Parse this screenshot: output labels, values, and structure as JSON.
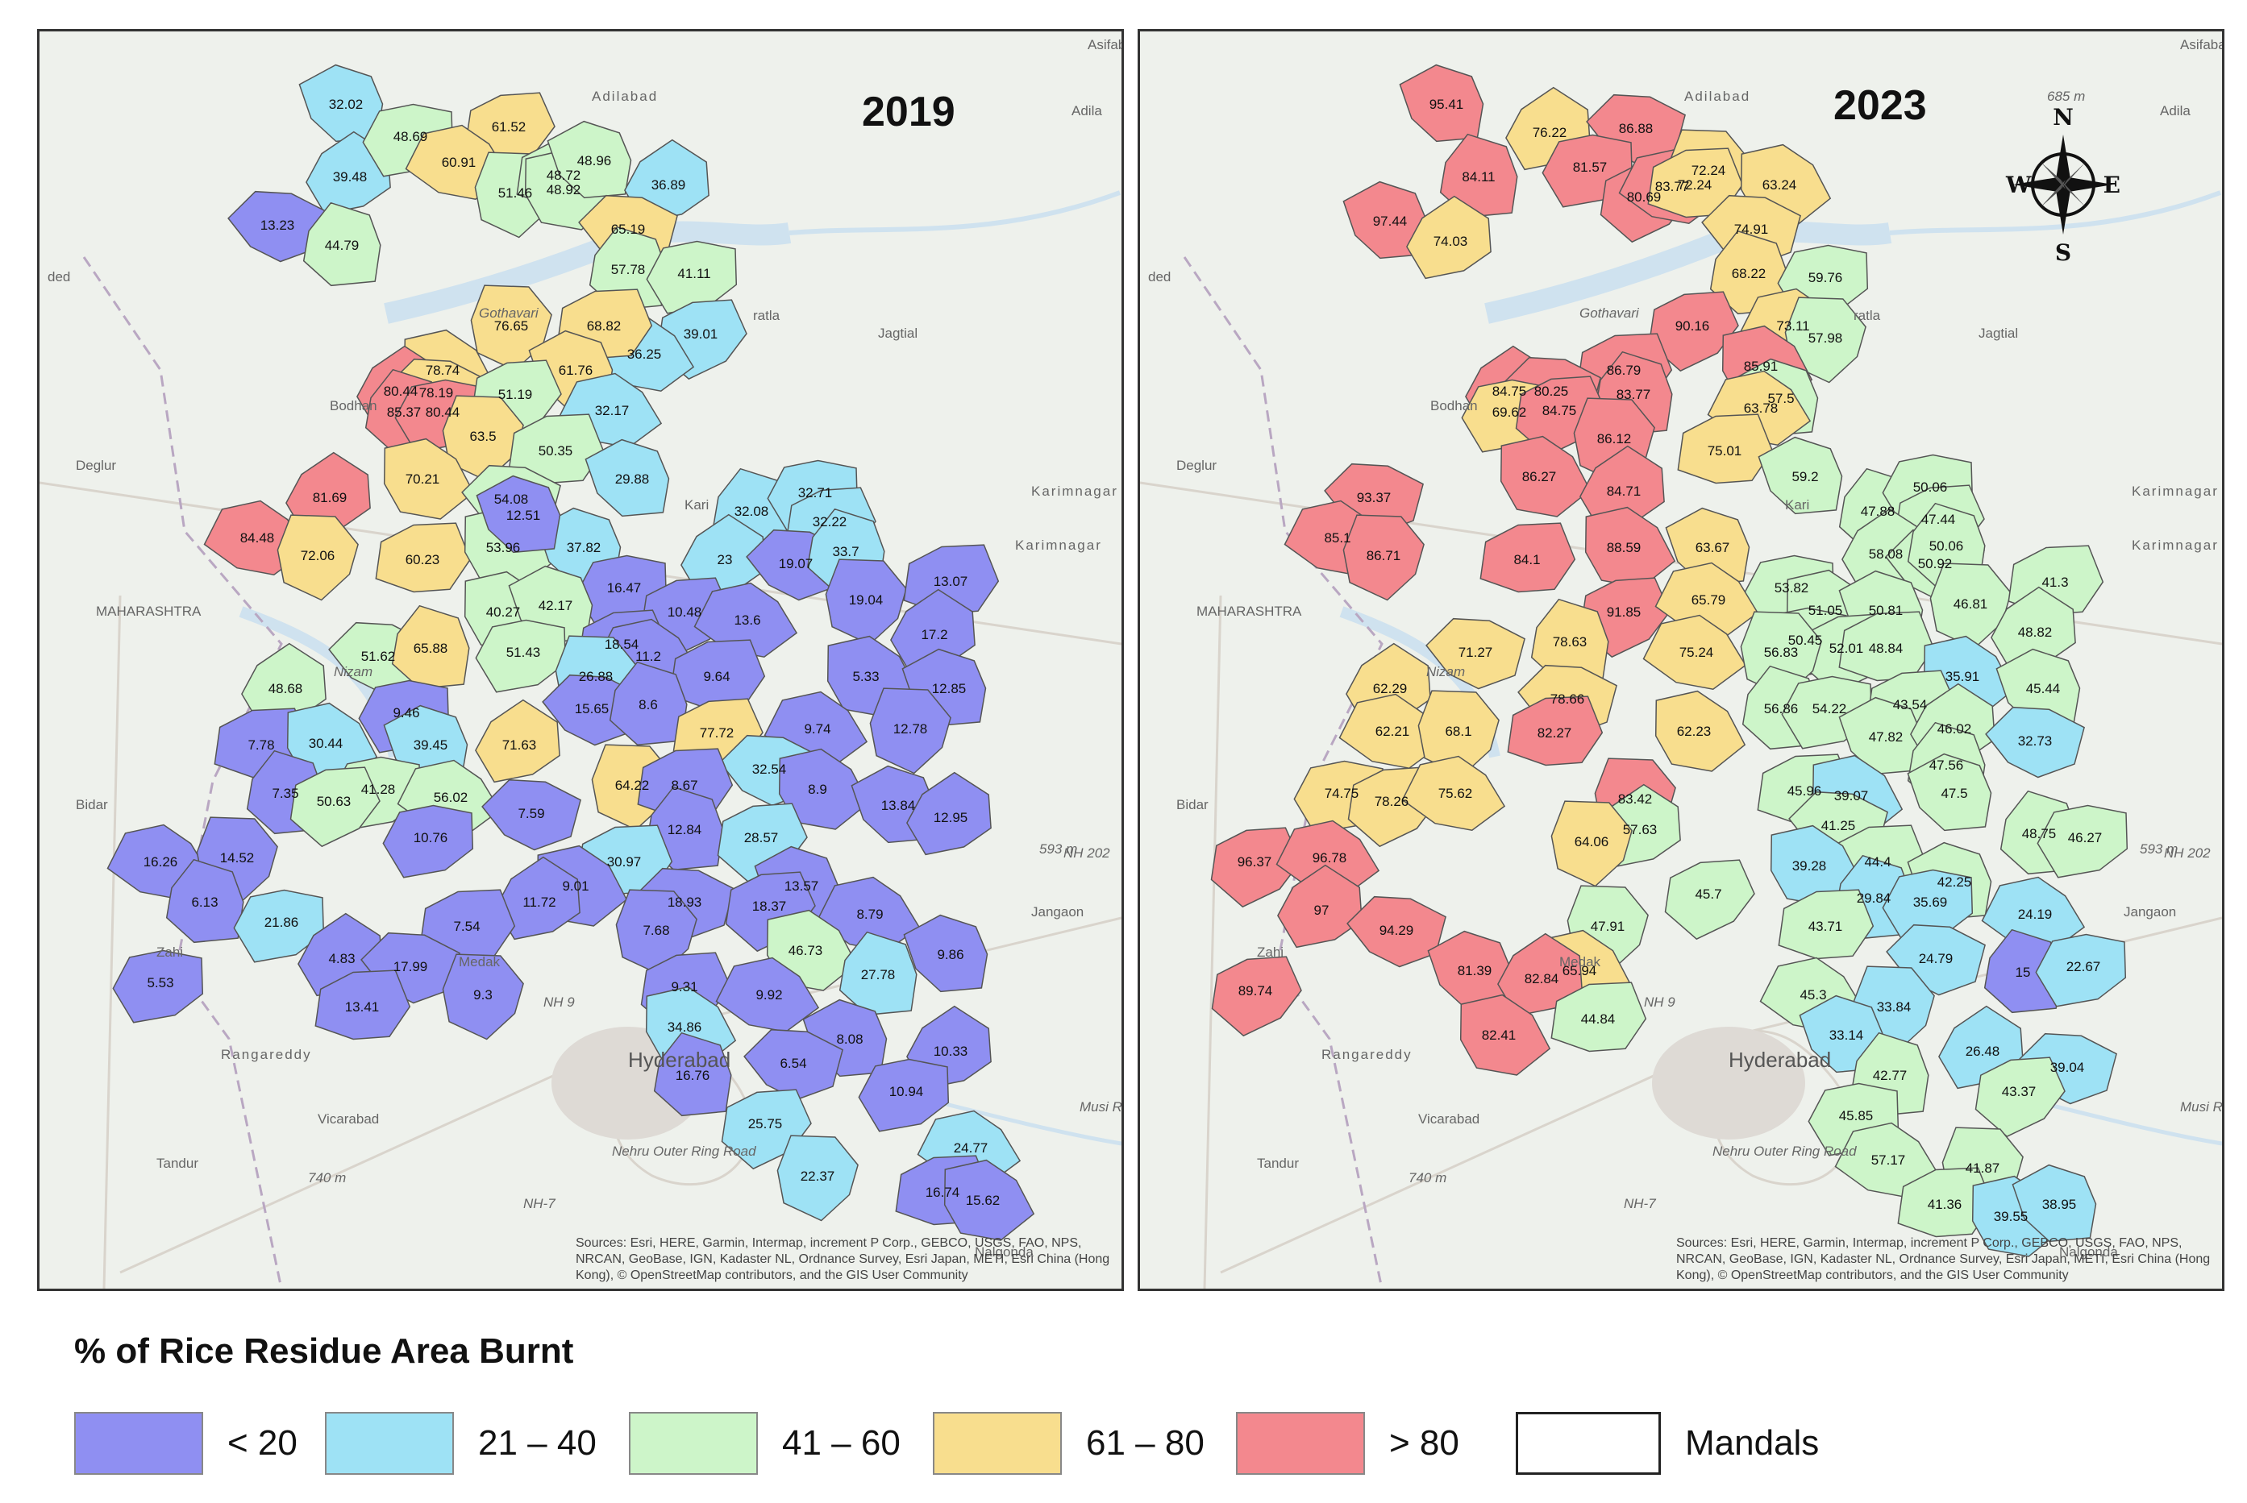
{
  "maps": [
    {
      "year": "2019",
      "places": [
        "Asifaba",
        "Adilabad",
        "Adila",
        "ded",
        "Gothavari",
        "Jagtial",
        "ratla",
        "Bodhan",
        "Deglur",
        "MAHARASHTRA",
        "Karimnagar",
        "Karimnagar",
        "Kari",
        "Nizam",
        "Bidar",
        "Zahi",
        "Jangaon",
        "593 m",
        "NH 202",
        "Rangareddy",
        "NH 9",
        "Hyderabad",
        "Vicarabad",
        "Tandur",
        "740 m",
        "NH-7",
        "Nehru Outer Ring Road",
        "Medak",
        "Nalgonda",
        "Musi R"
      ],
      "attribution": "Sources: Esri, HERE, Garmin, Intermap, increment P Corp., GEBCO, USGS, FAO, NPS, NRCAN, GeoBase, IGN, Kadaster NL, Ordnance Survey, Esri Japan, METI, Esri China (Hong Kong), © OpenStreetMap contributors, and the GIS User Community",
      "mandals": [
        {
          "v": "32.02",
          "c": "21-40"
        },
        {
          "v": "39.48",
          "c": "21-40"
        },
        {
          "v": "13.23",
          "c": "<20"
        },
        {
          "v": "44.79",
          "c": "41-60"
        },
        {
          "v": "48.69",
          "c": "41-60"
        },
        {
          "v": "61.52",
          "c": "61-80"
        },
        {
          "v": "60.91",
          "c": "61-80"
        },
        {
          "v": "51.46",
          "c": "41-60"
        },
        {
          "v": "48.72",
          "c": "41-60"
        },
        {
          "v": "48.92",
          "c": "41-60"
        },
        {
          "v": "48.96",
          "c": "41-60"
        },
        {
          "v": "36.89",
          "c": "21-40"
        },
        {
          "v": "65.19",
          "c": "61-80"
        },
        {
          "v": "57.78",
          "c": "41-60"
        },
        {
          "v": "41.11",
          "c": "41-60"
        },
        {
          "v": "39.01",
          "c": "21-40"
        },
        {
          "v": "36.25",
          "c": "21-40"
        },
        {
          "v": "76.65",
          "c": "61-80"
        },
        {
          "v": "68.82",
          "c": "61-80"
        },
        {
          "v": "78.74",
          "c": "61-80"
        },
        {
          "v": "61.76",
          "c": "61-80"
        },
        {
          "v": "80.44",
          "c": ">80"
        },
        {
          "v": "78.19",
          "c": "61-80"
        },
        {
          "v": "85.37",
          "c": ">80"
        },
        {
          "v": "80.44",
          "c": ">80"
        },
        {
          "v": "51.19",
          "c": "41-60"
        },
        {
          "v": "32.17",
          "c": "21-40"
        },
        {
          "v": "63.5",
          "c": "61-80"
        },
        {
          "v": "50.35",
          "c": "41-60"
        },
        {
          "v": "70.21",
          "c": "61-80"
        },
        {
          "v": "29.88",
          "c": "21-40"
        },
        {
          "v": "81.69",
          "c": ">80"
        },
        {
          "v": "54.08",
          "c": "41-60"
        },
        {
          "v": "32.08",
          "c": "21-40"
        },
        {
          "v": "32.71",
          "c": "21-40"
        },
        {
          "v": "32.22",
          "c": "21-40"
        },
        {
          "v": "84.48",
          "c": ">80"
        },
        {
          "v": "72.06",
          "c": "61-80"
        },
        {
          "v": "60.23",
          "c": "61-80"
        },
        {
          "v": "53.96",
          "c": "41-60"
        },
        {
          "v": "37.82",
          "c": "21-40"
        },
        {
          "v": "23",
          "c": "21-40"
        },
        {
          "v": "19.07",
          "c": "<20"
        },
        {
          "v": "33.7",
          "c": "21-40"
        },
        {
          "v": "16.47",
          "c": "<20"
        },
        {
          "v": "10.48",
          "c": "<20"
        },
        {
          "v": "13.6",
          "c": "<20"
        },
        {
          "v": "19.04",
          "c": "<20"
        },
        {
          "v": "13.07",
          "c": "<20"
        },
        {
          "v": "40.27",
          "c": "41-60"
        },
        {
          "v": "42.17",
          "c": "41-60"
        },
        {
          "v": "17.2",
          "c": "<20"
        },
        {
          "v": "51.62",
          "c": "41-60"
        },
        {
          "v": "65.88",
          "c": "61-80"
        },
        {
          "v": "51.43",
          "c": "41-60"
        },
        {
          "v": "18.54",
          "c": "<20"
        },
        {
          "v": "11.2",
          "c": "<20"
        },
        {
          "v": "26.88",
          "c": "21-40"
        },
        {
          "v": "9.64",
          "c": "<20"
        },
        {
          "v": "5.33",
          "c": "<20"
        },
        {
          "v": "12.85",
          "c": "<20"
        },
        {
          "v": "48.68",
          "c": "41-60"
        },
        {
          "v": "15.65",
          "c": "<20"
        },
        {
          "v": "8.6",
          "c": "<20"
        },
        {
          "v": "9.46",
          "c": "<20"
        },
        {
          "v": "77.72",
          "c": "61-80"
        },
        {
          "v": "9.74",
          "c": "<20"
        },
        {
          "v": "12.78",
          "c": "<20"
        },
        {
          "v": "7.78",
          "c": "<20"
        },
        {
          "v": "30.44",
          "c": "21-40"
        },
        {
          "v": "39.45",
          "c": "21-40"
        },
        {
          "v": "71.63",
          "c": "61-80"
        },
        {
          "v": "32.54",
          "c": "21-40"
        },
        {
          "v": "7.35",
          "c": "<20"
        },
        {
          "v": "41.28",
          "c": "41-60"
        },
        {
          "v": "50.63",
          "c": "41-60"
        },
        {
          "v": "56.02",
          "c": "41-60"
        },
        {
          "v": "64.22",
          "c": "61-80"
        },
        {
          "v": "8.67",
          "c": "<20"
        },
        {
          "v": "8.9",
          "c": "<20"
        },
        {
          "v": "13.84",
          "c": "<20"
        },
        {
          "v": "12.95",
          "c": "<20"
        },
        {
          "v": "7.59",
          "c": "<20"
        },
        {
          "v": "12.84",
          "c": "<20"
        },
        {
          "v": "10.76",
          "c": "<20"
        },
        {
          "v": "28.57",
          "c": "21-40"
        },
        {
          "v": "16.26",
          "c": "<20"
        },
        {
          "v": "14.52",
          "c": "<20"
        },
        {
          "v": "30.97",
          "c": "21-40"
        },
        {
          "v": "9.01",
          "c": "<20"
        },
        {
          "v": "13.57",
          "c": "<20"
        },
        {
          "v": "11.72",
          "c": "<20"
        },
        {
          "v": "18.93",
          "c": "<20"
        },
        {
          "v": "6.13",
          "c": "<20"
        },
        {
          "v": "21.86",
          "c": "21-40"
        },
        {
          "v": "18.37",
          "c": "<20"
        },
        {
          "v": "8.79",
          "c": "<20"
        },
        {
          "v": "7.68",
          "c": "<20"
        },
        {
          "v": "7.54",
          "c": "<20"
        },
        {
          "v": "46.73",
          "c": "41-60"
        },
        {
          "v": "9.86",
          "c": "<20"
        },
        {
          "v": "4.83",
          "c": "<20"
        },
        {
          "v": "17.99",
          "c": "<20"
        },
        {
          "v": "27.78",
          "c": "21-40"
        },
        {
          "v": "5.53",
          "c": "<20"
        },
        {
          "v": "9.31",
          "c": "<20"
        },
        {
          "v": "9.92",
          "c": "<20"
        },
        {
          "v": "9.3",
          "c": "<20"
        },
        {
          "v": "13.41",
          "c": "<20"
        },
        {
          "v": "34.86",
          "c": "21-40"
        },
        {
          "v": "8.08",
          "c": "<20"
        },
        {
          "v": "10.33",
          "c": "<20"
        },
        {
          "v": "6.54",
          "c": "<20"
        },
        {
          "v": "16.76",
          "c": "<20"
        },
        {
          "v": "10.94",
          "c": "<20"
        },
        {
          "v": "25.75",
          "c": "21-40"
        },
        {
          "v": "24.77",
          "c": "21-40"
        },
        {
          "v": "22.37",
          "c": "21-40"
        },
        {
          "v": "16.74",
          "c": "<20"
        },
        {
          "v": "15.62",
          "c": "<20"
        },
        {
          "v": "12.51",
          "c": "<20"
        }
      ]
    },
    {
      "year": "2023",
      "places": [
        "Asifaba",
        "Adilabad",
        "Adila",
        "685 m",
        "ded",
        "Gothavari",
        "Jagtial",
        "ratla",
        "Bodhan",
        "Deglur",
        "MAHARASHTRA",
        "Karimnagar",
        "Karimnagar",
        "Kari",
        "Nizam",
        "Bidar",
        "Zahi",
        "Jangaon",
        "593 m",
        "NH 202",
        "Rangareddy",
        "NH 9",
        "Hyderabad",
        "Vicarabad",
        "Tandur",
        "740 m",
        "NH-7",
        "Nehru Outer Ring Road",
        "Medak",
        "Nalgonda",
        "Musi R"
      ],
      "attribution": "Sources: Esri, HERE, Garmin, Intermap, increment P Corp., GEBCO, USGS, FAO, NPS, NRCAN, GeoBase, IGN, Kadaster NL, Ordnance Survey, Esri Japan, METI, Esri China (Hong Kong), © OpenStreetMap contributors, and the GIS User Community",
      "compass": {
        "n": "N",
        "s": "S",
        "e": "E",
        "w": "W"
      },
      "mandals": [
        {
          "v": "95.41",
          "c": ">80"
        },
        {
          "v": "76.22",
          "c": "61-80"
        },
        {
          "v": "86.88",
          "c": ">80"
        },
        {
          "v": "84.11",
          "c": ">80"
        },
        {
          "v": "81.57",
          "c": ">80"
        },
        {
          "v": "80.69",
          "c": ">80"
        },
        {
          "v": "83.77",
          "c": ">80"
        },
        {
          "v": "72.24",
          "c": "61-80"
        },
        {
          "v": "72.24",
          "c": "61-80"
        },
        {
          "v": "63.24",
          "c": "61-80"
        },
        {
          "v": "97.44",
          "c": ">80"
        },
        {
          "v": "74.03",
          "c": "61-80"
        },
        {
          "v": "74.91",
          "c": "61-80"
        },
        {
          "v": "68.22",
          "c": "61-80"
        },
        {
          "v": "59.76",
          "c": "41-60"
        },
        {
          "v": "90.16",
          "c": ">80"
        },
        {
          "v": "73.11",
          "c": "61-80"
        },
        {
          "v": "57.98",
          "c": "41-60"
        },
        {
          "v": "86.79",
          "c": ">80"
        },
        {
          "v": "85.91",
          "c": ">80"
        },
        {
          "v": "57.5",
          "c": "41-60"
        },
        {
          "v": "84.75",
          "c": ">80"
        },
        {
          "v": "80.25",
          "c": ">80"
        },
        {
          "v": "83.77",
          "c": ">80"
        },
        {
          "v": "69.62",
          "c": "61-80"
        },
        {
          "v": "84.75",
          "c": ">80"
        },
        {
          "v": "63.78",
          "c": "61-80"
        },
        {
          "v": "86.12",
          "c": ">80"
        },
        {
          "v": "75.01",
          "c": "61-80"
        },
        {
          "v": "86.27",
          "c": ">80"
        },
        {
          "v": "59.2",
          "c": "41-60"
        },
        {
          "v": "84.71",
          "c": ">80"
        },
        {
          "v": "93.37",
          "c": ">80"
        },
        {
          "v": "47.88",
          "c": "41-60"
        },
        {
          "v": "50.06",
          "c": "41-60"
        },
        {
          "v": "47.44",
          "c": "41-60"
        },
        {
          "v": "85.1",
          "c": ">80"
        },
        {
          "v": "86.71",
          "c": ">80"
        },
        {
          "v": "84.1",
          "c": ">80"
        },
        {
          "v": "88.59",
          "c": ">80"
        },
        {
          "v": "63.67",
          "c": "61-80"
        },
        {
          "v": "58.08",
          "c": "41-60"
        },
        {
          "v": "50.92",
          "c": "41-60"
        },
        {
          "v": "50.06",
          "c": "41-60"
        },
        {
          "v": "53.82",
          "c": "41-60"
        },
        {
          "v": "91.85",
          "c": ">80"
        },
        {
          "v": "65.79",
          "c": "61-80"
        },
        {
          "v": "46.81",
          "c": "41-60"
        },
        {
          "v": "41.3",
          "c": "41-60"
        },
        {
          "v": "51.05",
          "c": "41-60"
        },
        {
          "v": "50.81",
          "c": "41-60"
        },
        {
          "v": "48.82",
          "c": "41-60"
        },
        {
          "v": "71.27",
          "c": "61-80"
        },
        {
          "v": "78.63",
          "c": "61-80"
        },
        {
          "v": "50.45",
          "c": "41-60"
        },
        {
          "v": "52.01",
          "c": "41-60"
        },
        {
          "v": "75.24",
          "c": "61-80"
        },
        {
          "v": "56.83",
          "c": "41-60"
        },
        {
          "v": "48.84",
          "c": "41-60"
        },
        {
          "v": "35.91",
          "c": "21-40"
        },
        {
          "v": "45.44",
          "c": "41-60"
        },
        {
          "v": "62.29",
          "c": "61-80"
        },
        {
          "v": "78.66",
          "c": "61-80"
        },
        {
          "v": "56.86",
          "c": "41-60"
        },
        {
          "v": "54.22",
          "c": "41-60"
        },
        {
          "v": "43.54",
          "c": "41-60"
        },
        {
          "v": "62.21",
          "c": "61-80"
        },
        {
          "v": "68.1",
          "c": "61-80"
        },
        {
          "v": "82.27",
          "c": ">80"
        },
        {
          "v": "62.23",
          "c": "61-80"
        },
        {
          "v": "47.82",
          "c": "41-60"
        },
        {
          "v": "46.02",
          "c": "41-60"
        },
        {
          "v": "32.73",
          "c": "21-40"
        },
        {
          "v": "47.56",
          "c": "41-60"
        },
        {
          "v": "74.75",
          "c": "61-80"
        },
        {
          "v": "78.26",
          "c": "61-80"
        },
        {
          "v": "75.62",
          "c": "61-80"
        },
        {
          "v": "83.42",
          "c": ">80"
        },
        {
          "v": "45.96",
          "c": "41-60"
        },
        {
          "v": "39.07",
          "c": "21-40"
        },
        {
          "v": "47.5",
          "c": "41-60"
        },
        {
          "v": "57.63",
          "c": "41-60"
        },
        {
          "v": "41.25",
          "c": "41-60"
        },
        {
          "v": "48.75",
          "c": "41-60"
        },
        {
          "v": "46.27",
          "c": "41-60"
        },
        {
          "v": "96.37",
          "c": ">80"
        },
        {
          "v": "96.78",
          "c": ">80"
        },
        {
          "v": "64.06",
          "c": "61-80"
        },
        {
          "v": "44.4",
          "c": "41-60"
        },
        {
          "v": "39.28",
          "c": "21-40"
        },
        {
          "v": "42.25",
          "c": "41-60"
        },
        {
          "v": "97",
          "c": ">80"
        },
        {
          "v": "94.29",
          "c": ">80"
        },
        {
          "v": "29.84",
          "c": "21-40"
        },
        {
          "v": "35.69",
          "c": "21-40"
        },
        {
          "v": "45.7",
          "c": "41-60"
        },
        {
          "v": "24.19",
          "c": "21-40"
        },
        {
          "v": "47.91",
          "c": "41-60"
        },
        {
          "v": "43.71",
          "c": "41-60"
        },
        {
          "v": "65.94",
          "c": "61-80"
        },
        {
          "v": "81.39",
          "c": ">80"
        },
        {
          "v": "82.84",
          "c": ">80"
        },
        {
          "v": "24.79",
          "c": "21-40"
        },
        {
          "v": "15",
          "c": "<20"
        },
        {
          "v": "22.67",
          "c": "21-40"
        },
        {
          "v": "89.74",
          "c": ">80"
        },
        {
          "v": "45.3",
          "c": "41-60"
        },
        {
          "v": "33.84",
          "c": "21-40"
        },
        {
          "v": "44.84",
          "c": "41-60"
        },
        {
          "v": "82.41",
          "c": ">80"
        },
        {
          "v": "33.14",
          "c": "21-40"
        },
        {
          "v": "26.48",
          "c": "21-40"
        },
        {
          "v": "39.04",
          "c": "21-40"
        },
        {
          "v": "42.77",
          "c": "41-60"
        },
        {
          "v": "45.85",
          "c": "41-60"
        },
        {
          "v": "43.37",
          "c": "41-60"
        },
        {
          "v": "57.17",
          "c": "41-60"
        },
        {
          "v": "41.87",
          "c": "41-60"
        },
        {
          "v": "41.36",
          "c": "41-60"
        },
        {
          "v": "39.55",
          "c": "21-40"
        },
        {
          "v": "38.95",
          "c": "21-40"
        }
      ]
    }
  ],
  "legend": {
    "title": "% of Rice Residue Area Burnt",
    "items": [
      {
        "label": "< 20",
        "color": "#8f8ff2",
        "key": "<20"
      },
      {
        "label": "21 – 40",
        "color": "#9ee2f5",
        "key": "21-40"
      },
      {
        "label": "41 – 60",
        "color": "#cdf5c9",
        "key": "41-60"
      },
      {
        "label": "61 – 80",
        "color": "#f8de8e",
        "key": "61-80"
      },
      {
        "label": "> 80",
        "color": "#f3888e",
        "key": ">80"
      },
      {
        "label": "Mandals",
        "color": "#ffffff",
        "key": "mandals"
      }
    ]
  },
  "colors": {
    "border": "#555555",
    "basemap": "#eef1ec",
    "water": "#cfe2ef"
  }
}
